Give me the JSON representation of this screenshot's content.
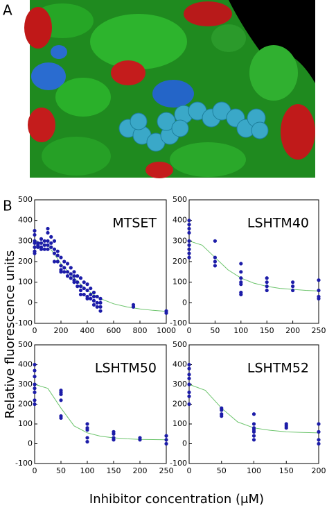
{
  "panel_labels": [
    "A",
    "B"
  ],
  "y_label": "Relative fluorescence units",
  "x_label": "Inhibitor concentration (μM)",
  "chart_data": [
    {
      "type": "scatter",
      "title": "MTSET",
      "color": "#1c1ca8",
      "fit_color": "#6cc46c",
      "xlim": [
        0,
        1000
      ],
      "xticks": [
        0,
        200,
        400,
        600,
        800,
        1000
      ],
      "ylim": [
        -100,
        500
      ],
      "yticks": [
        -100,
        0,
        100,
        200,
        300,
        400,
        500
      ],
      "x": [
        0,
        0,
        0,
        0,
        0,
        0,
        0,
        25,
        25,
        25,
        50,
        50,
        50,
        50,
        75,
        75,
        75,
        100,
        100,
        100,
        100,
        100,
        125,
        125,
        125,
        150,
        150,
        150,
        150,
        175,
        175,
        175,
        200,
        200,
        200,
        200,
        225,
        225,
        225,
        250,
        250,
        250,
        275,
        275,
        275,
        300,
        300,
        300,
        300,
        325,
        325,
        325,
        350,
        350,
        350,
        350,
        375,
        375,
        375,
        400,
        400,
        400,
        400,
        425,
        425,
        425,
        450,
        450,
        450,
        450,
        475,
        475,
        475,
        500,
        500,
        500,
        500,
        750,
        750,
        1000,
        1000
      ],
      "y": [
        350,
        330,
        300,
        290,
        270,
        250,
        240,
        290,
        280,
        270,
        310,
        290,
        270,
        260,
        300,
        280,
        260,
        360,
        340,
        300,
        280,
        260,
        320,
        290,
        270,
        300,
        260,
        240,
        200,
        250,
        230,
        200,
        220,
        180,
        160,
        150,
        200,
        170,
        150,
        190,
        150,
        130,
        170,
        140,
        120,
        150,
        130,
        110,
        100,
        130,
        100,
        80,
        120,
        80,
        60,
        40,
        100,
        70,
        40,
        90,
        60,
        30,
        20,
        70,
        40,
        20,
        50,
        30,
        10,
        -10,
        30,
        0,
        -20,
        20,
        0,
        -20,
        -40,
        -10,
        -20,
        -40,
        -50
      ],
      "fit": {
        "x": [
          0,
          100,
          200,
          300,
          400,
          500,
          600,
          700,
          800,
          900,
          1000
        ],
        "y": [
          300,
          280,
          190,
          120,
          60,
          20,
          -5,
          -20,
          -30,
          -37,
          -42
        ]
      }
    },
    {
      "type": "scatter",
      "title": "LSHTM40",
      "color": "#1c1ca8",
      "fit_color": "#6cc46c",
      "xlim": [
        0,
        250
      ],
      "xticks": [
        0,
        50,
        100,
        150,
        200,
        250
      ],
      "ylim": [
        -100,
        500
      ],
      "yticks": [
        -100,
        0,
        100,
        200,
        300,
        400,
        500
      ],
      "x": [
        0,
        0,
        0,
        0,
        0,
        0,
        0,
        0,
        0,
        50,
        50,
        50,
        50,
        100,
        100,
        100,
        100,
        100,
        100,
        100,
        150,
        150,
        150,
        150,
        200,
        200,
        200,
        250,
        250,
        250,
        250
      ],
      "y": [
        400,
        380,
        360,
        340,
        300,
        280,
        260,
        240,
        220,
        300,
        220,
        200,
        180,
        190,
        150,
        120,
        100,
        90,
        50,
        40,
        120,
        100,
        80,
        60,
        100,
        80,
        60,
        110,
        60,
        30,
        20
      ],
      "fit": {
        "x": [
          0,
          25,
          50,
          75,
          100,
          125,
          150,
          175,
          200,
          225,
          250
        ],
        "y": [
          300,
          280,
          220,
          160,
          120,
          95,
          80,
          70,
          65,
          60,
          57
        ]
      }
    },
    {
      "type": "scatter",
      "title": "LSHTM50",
      "color": "#1c1ca8",
      "fit_color": "#6cc46c",
      "xlim": [
        0,
        250
      ],
      "xticks": [
        0,
        50,
        100,
        150,
        200,
        250
      ],
      "ylim": [
        -100,
        500
      ],
      "yticks": [
        -100,
        0,
        100,
        200,
        300,
        400,
        500
      ],
      "x": [
        0,
        0,
        0,
        0,
        0,
        0,
        0,
        0,
        50,
        50,
        50,
        50,
        50,
        50,
        100,
        100,
        100,
        100,
        100,
        150,
        150,
        150,
        150,
        200,
        200,
        250,
        250,
        250
      ],
      "y": [
        400,
        370,
        340,
        300,
        280,
        260,
        220,
        200,
        270,
        260,
        250,
        220,
        140,
        130,
        100,
        80,
        70,
        30,
        10,
        60,
        50,
        30,
        20,
        30,
        20,
        40,
        20,
        0
      ],
      "fit": {
        "x": [
          0,
          25,
          50,
          75,
          100,
          125,
          150,
          175,
          200,
          225,
          250
        ],
        "y": [
          300,
          280,
          180,
          90,
          55,
          38,
          30,
          25,
          22,
          21,
          20
        ]
      }
    },
    {
      "type": "scatter",
      "title": "LSHTM52",
      "color": "#1c1ca8",
      "fit_color": "#6cc46c",
      "xlim": [
        0,
        200
      ],
      "xticks": [
        0,
        50,
        100,
        150,
        200
      ],
      "ylim": [
        -100,
        500
      ],
      "yticks": [
        -100,
        0,
        100,
        200,
        300,
        400,
        500
      ],
      "x": [
        0,
        0,
        0,
        0,
        0,
        0,
        0,
        0,
        50,
        50,
        50,
        50,
        100,
        100,
        100,
        100,
        100,
        100,
        100,
        150,
        150,
        150,
        200,
        200,
        200,
        200
      ],
      "y": [
        400,
        380,
        350,
        330,
        300,
        260,
        240,
        200,
        180,
        170,
        150,
        140,
        150,
        100,
        80,
        70,
        60,
        40,
        20,
        100,
        90,
        80,
        100,
        60,
        20,
        0
      ],
      "fit": {
        "x": [
          0,
          25,
          50,
          75,
          100,
          125,
          150,
          175,
          200
        ],
        "y": [
          300,
          270,
          180,
          110,
          80,
          68,
          60,
          57,
          55
        ]
      }
    }
  ]
}
